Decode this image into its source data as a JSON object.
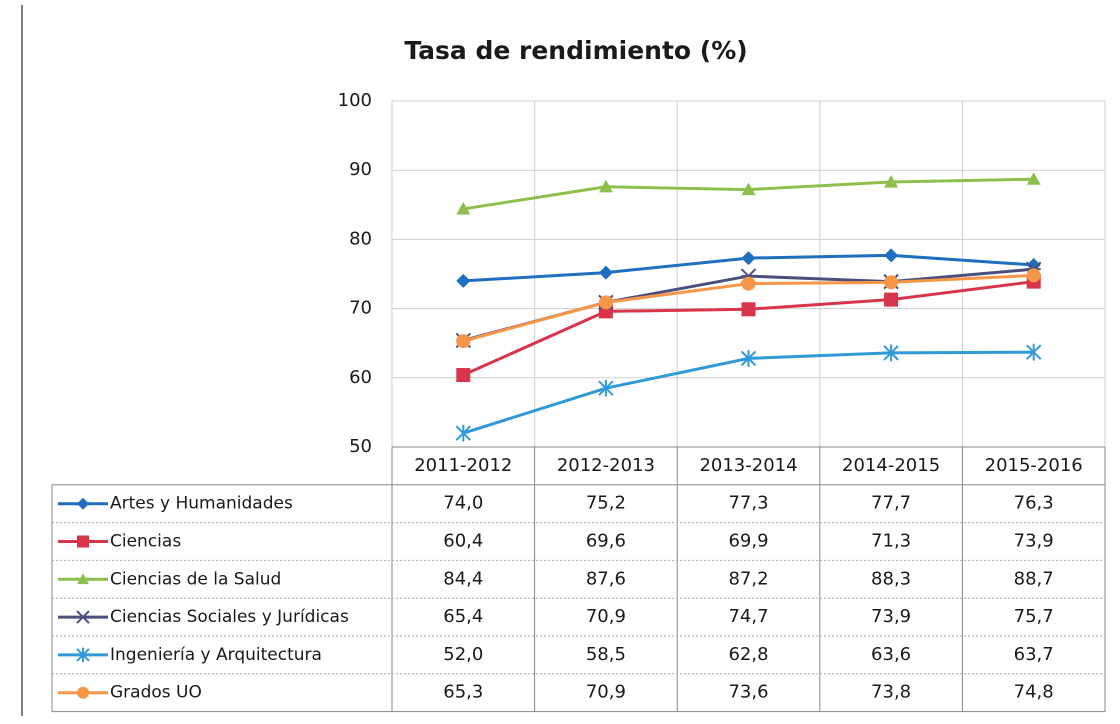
{
  "chart_data": {
    "type": "line",
    "title": "Tasa de rendimiento (%)",
    "categories": [
      "2011-2012",
      "2012-2013",
      "2013-2014",
      "2014-2015",
      "2015-2016"
    ],
    "ylim": [
      50,
      100
    ],
    "yticks": [
      50,
      60,
      70,
      80,
      90,
      100
    ],
    "grid": true,
    "series": [
      {
        "name": "Artes y Humanidades",
        "color": "#1f6fc0",
        "marker": "diamond",
        "values": [
          74.0,
          75.2,
          77.3,
          77.7,
          76.3
        ],
        "value_labels": [
          "74,0",
          "75,2",
          "77,3",
          "77,7",
          "76,3"
        ]
      },
      {
        "name": "Ciencias",
        "color": "#d8344a",
        "marker": "square",
        "values": [
          60.4,
          69.6,
          69.9,
          71.3,
          73.9
        ],
        "value_labels": [
          "60,4",
          "69,6",
          "69,9",
          "71,3",
          "73,9"
        ]
      },
      {
        "name": "Ciencias de la Salud",
        "color": "#8dc04a",
        "marker": "triangle",
        "values": [
          84.4,
          87.6,
          87.2,
          88.3,
          88.7
        ],
        "value_labels": [
          "84,4",
          "87,6",
          "87,2",
          "88,3",
          "88,7"
        ]
      },
      {
        "name": "Ciencias Sociales y Jurídicas",
        "color": "#4a4f7e",
        "marker": "cross",
        "values": [
          65.4,
          70.9,
          74.7,
          73.9,
          75.7
        ],
        "value_labels": [
          "65,4",
          "70,9",
          "74,7",
          "73,9",
          "75,7"
        ]
      },
      {
        "name": "Ingeniería y Arquitectura",
        "color": "#2f9ad8",
        "marker": "asterisk",
        "values": [
          52.0,
          58.5,
          62.8,
          63.6,
          63.7
        ],
        "value_labels": [
          "52,0",
          "58,5",
          "62,8",
          "63,6",
          "63,7"
        ]
      },
      {
        "name": "Grados UO",
        "color": "#f79646",
        "marker": "circle",
        "values": [
          65.3,
          70.9,
          73.6,
          73.8,
          74.8
        ],
        "value_labels": [
          "65,3",
          "70,9",
          "73,6",
          "73,8",
          "74,8"
        ]
      }
    ]
  }
}
